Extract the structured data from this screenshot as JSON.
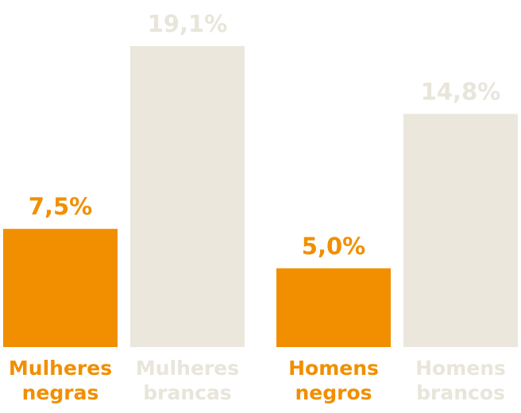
{
  "chart_data": {
    "type": "bar",
    "title": "",
    "xlabel": "",
    "ylabel": "",
    "ylim": [
      0,
      19.1
    ],
    "grid": false,
    "legend": "none",
    "categories": [
      {
        "lines": [
          "Mulheres",
          "negras"
        ],
        "group": 0
      },
      {
        "lines": [
          "Mulheres",
          "brancas"
        ],
        "group": 0
      },
      {
        "lines": [
          "Homens",
          "negros"
        ],
        "group": 1
      },
      {
        "lines": [
          "Homens",
          "brancos"
        ],
        "group": 1
      }
    ],
    "values": [
      7.5,
      19.1,
      5.0,
      14.8
    ],
    "value_labels": [
      "7,5%",
      "19,1%",
      "5,0%",
      "14,8%"
    ],
    "bar_colors": [
      "#f18f00",
      "#ebe7dc",
      "#f18f00",
      "#ebe7dc"
    ],
    "label_colors": [
      "#f18f00",
      "#e8e5db",
      "#f18f00",
      "#e8e5db"
    ]
  }
}
